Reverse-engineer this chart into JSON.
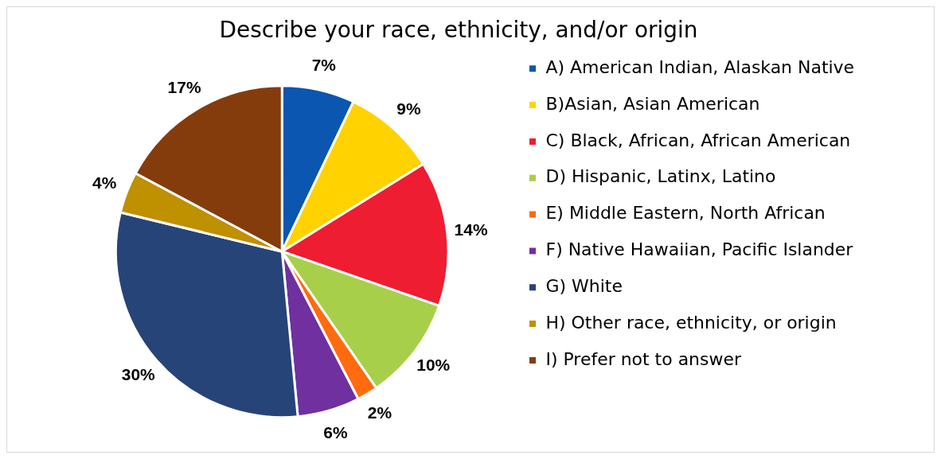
{
  "chart_data": {
    "type": "pie",
    "title": "Describe your race, ethnicity, and/or origin",
    "categories": [
      "A) American Indian, Alaskan Native",
      "B)Asian, Asian American",
      "C) Black, African, African American",
      "D) Hispanic, Latinx, Latino",
      "E) Middle Eastern, North African",
      "F) Native Hawaiian, Pacific Islander",
      "G) White",
      "H) Other race, ethnicity, or origin",
      "I) Prefer not to answer"
    ],
    "values": [
      7,
      9,
      14,
      10,
      2,
      6,
      30,
      4,
      17
    ],
    "value_labels": [
      "7%",
      "9%",
      "14%",
      "10%",
      "2%",
      "6%",
      "30%",
      "4%",
      "17%"
    ],
    "colors": [
      "#0a56b0",
      "#ffd200",
      "#ee1d31",
      "#a8cf4a",
      "#ff6b0e",
      "#7030a0",
      "#264478",
      "#bf9000",
      "#843c0c"
    ],
    "legend": "right"
  }
}
